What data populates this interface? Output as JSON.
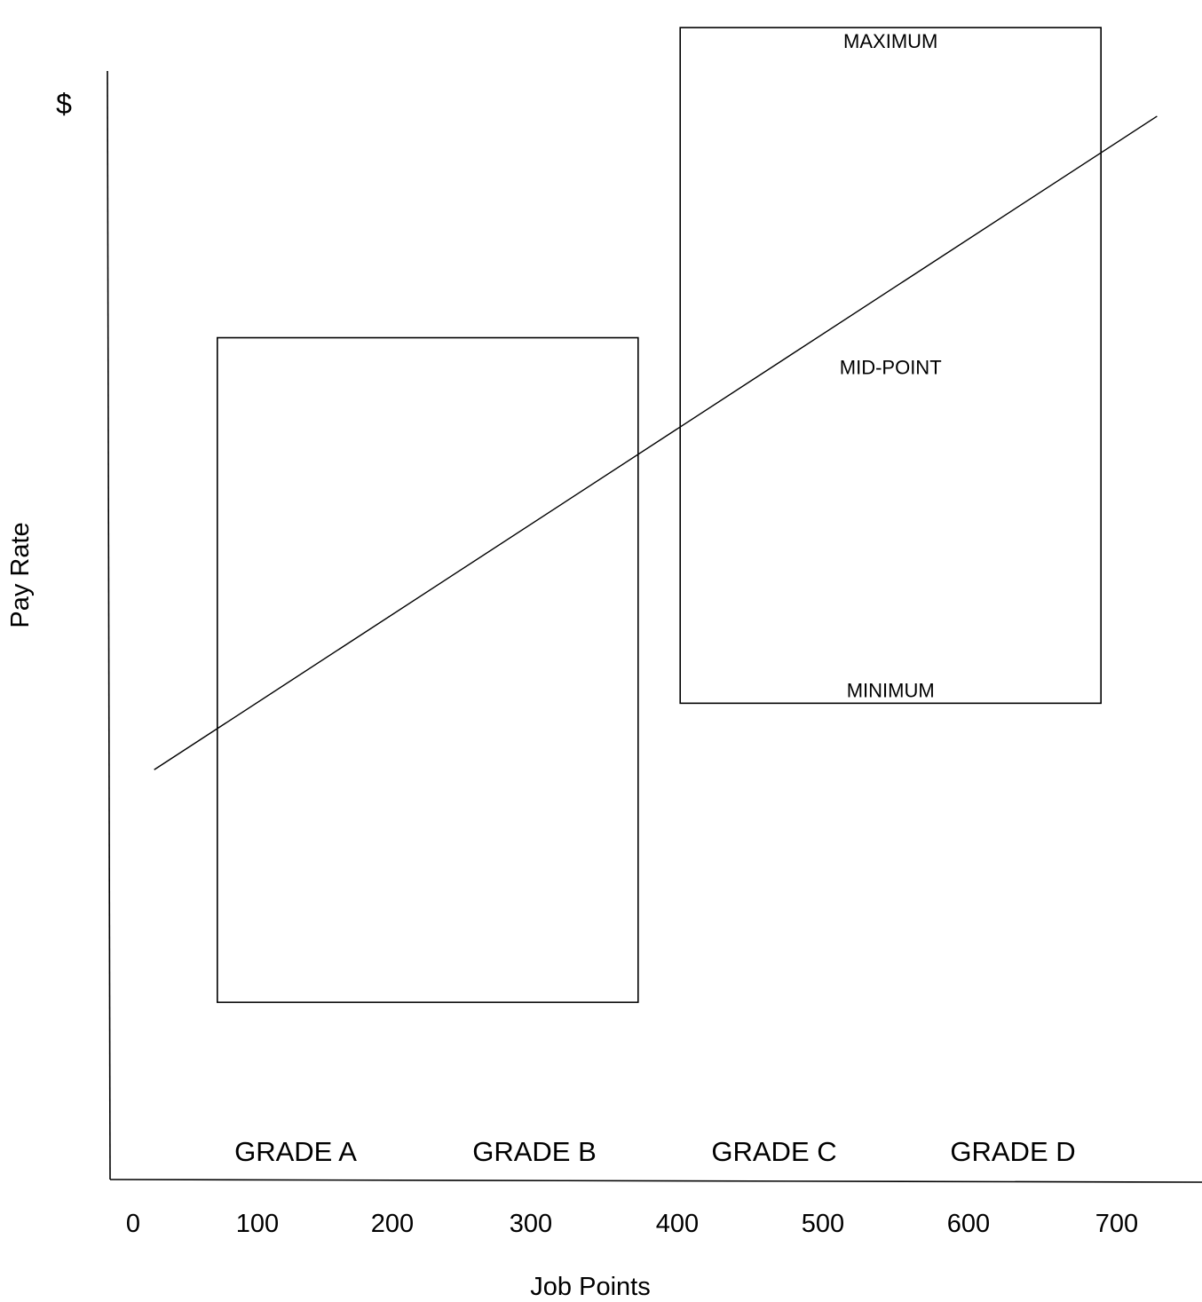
{
  "chart_data": {
    "type": "line",
    "xlabel": "Job Points",
    "ylabel": "Pay Rate",
    "y_unit_label": "$",
    "x_ticks": [
      0,
      100,
      200,
      300,
      400,
      500,
      600,
      700
    ],
    "xlim": [
      0,
      700
    ],
    "grid": false,
    "grade_labels": [
      "GRADE A",
      "GRADE B",
      "GRADE C",
      "GRADE D"
    ],
    "pay_line": {
      "x": [
        15,
        730
      ],
      "y": [
        37,
        96
      ]
    },
    "ranges": [
      {
        "x_start": 60,
        "x_end": 360,
        "minimum": 16,
        "maximum": 76
      },
      {
        "x_start": 390,
        "x_end": 690,
        "minimum": 43,
        "maximum": 104
      }
    ],
    "range_annotations": {
      "maximum": "MAXIMUM",
      "midpoint": "MID-POINT",
      "minimum": "MINIMUM"
    }
  }
}
